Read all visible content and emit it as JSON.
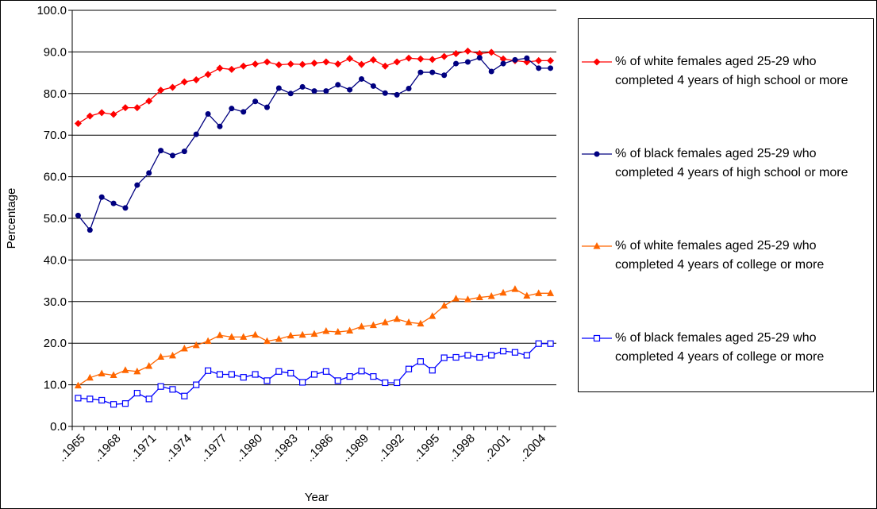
{
  "chart_data": {
    "type": "line",
    "x_label": "Year",
    "y_label": "Percentage",
    "categories": [
      "..1965",
      null,
      null,
      "..1968",
      null,
      null,
      "..1971",
      null,
      null,
      "..1974",
      null,
      null,
      "..1977",
      null,
      null,
      "..1980",
      null,
      null,
      "..1983",
      null,
      null,
      "..1986",
      null,
      null,
      "..1989",
      null,
      null,
      "..1992",
      null,
      null,
      "..1995",
      null,
      null,
      "..1998",
      null,
      null,
      "..2001",
      null,
      null,
      "..2004",
      null
    ],
    "ylim": [
      0,
      100
    ],
    "yticks": [
      {
        "value": 0,
        "label": "0.0"
      },
      {
        "value": 10,
        "label": "10.0"
      },
      {
        "value": 20,
        "label": "20.0"
      },
      {
        "value": 30,
        "label": "30.0"
      },
      {
        "value": 40,
        "label": "40.0"
      },
      {
        "value": 50,
        "label": "50.0"
      },
      {
        "value": 60,
        "label": "60.0"
      },
      {
        "value": 70,
        "label": "70.0"
      },
      {
        "value": 80,
        "label": "80.0"
      },
      {
        "value": 90,
        "label": "90.0"
      },
      {
        "value": 100,
        "label": "100.0"
      }
    ],
    "grid": true,
    "series": [
      {
        "name": "% of white females aged 25-29 who completed 4 years of high school or more",
        "color": "#ff0000",
        "marker": "diamond",
        "values": [
          72.8,
          74.6,
          75.4,
          75.0,
          76.6,
          76.6,
          78.2,
          80.8,
          81.5,
          82.8,
          83.3,
          84.6,
          86.1,
          85.8,
          86.6,
          87.1,
          87.6,
          86.9,
          87.1,
          87.0,
          87.3,
          87.6,
          87.1,
          88.4,
          87.0,
          88.1,
          86.6,
          87.6,
          88.5,
          88.3,
          88.2,
          88.9,
          89.6,
          90.2,
          89.6,
          89.9,
          88.3,
          87.9,
          87.6,
          87.9,
          87.9
        ]
      },
      {
        "name": "% of black females aged 25-29 who completed 4 years of high school or more",
        "color": "#000080",
        "marker": "circle",
        "values": [
          50.7,
          47.2,
          55.1,
          53.6,
          52.5,
          58.0,
          60.9,
          66.3,
          65.1,
          66.1,
          70.2,
          75.1,
          72.1,
          76.4,
          75.6,
          78.1,
          76.7,
          81.3,
          80.0,
          81.6,
          80.6,
          80.6,
          82.1,
          80.9,
          83.5,
          81.8,
          80.1,
          79.7,
          81.2,
          85.1,
          85.1,
          84.4,
          87.2,
          87.6,
          88.6,
          85.3,
          87.2,
          88.1,
          88.5,
          86.1,
          86.1
        ]
      },
      {
        "name": "% of white females aged 25-29 who completed 4 years of college or more",
        "color": "#ff6600",
        "marker": "triangle",
        "values": [
          9.8,
          11.7,
          12.7,
          12.3,
          13.5,
          13.2,
          14.5,
          16.7,
          17.0,
          18.7,
          19.5,
          20.5,
          21.9,
          21.5,
          21.5,
          22.0,
          20.5,
          21.0,
          21.8,
          22.0,
          22.2,
          22.9,
          22.7,
          23.0,
          24.0,
          24.3,
          25.0,
          25.8,
          25.0,
          24.7,
          26.5,
          29.0,
          30.7,
          30.5,
          31.0,
          31.3,
          32.1,
          33.0,
          31.4,
          32.0,
          32.0
        ]
      },
      {
        "name": "% of black females aged 25-29 who completed 4 years of college or more",
        "color": "#0000ff",
        "marker": "square-open",
        "values": [
          6.8,
          6.6,
          6.3,
          5.3,
          5.5,
          8.0,
          6.6,
          9.6,
          8.9,
          7.3,
          10.0,
          13.4,
          12.5,
          12.5,
          11.8,
          12.5,
          11.0,
          13.2,
          12.8,
          10.6,
          12.5,
          13.2,
          11.0,
          12.0,
          13.3,
          12.0,
          10.5,
          10.5,
          13.8,
          15.6,
          13.5,
          16.5,
          16.6,
          17.1,
          16.6,
          17.1,
          18.1,
          17.8,
          17.1,
          19.9,
          19.9
        ]
      }
    ]
  }
}
